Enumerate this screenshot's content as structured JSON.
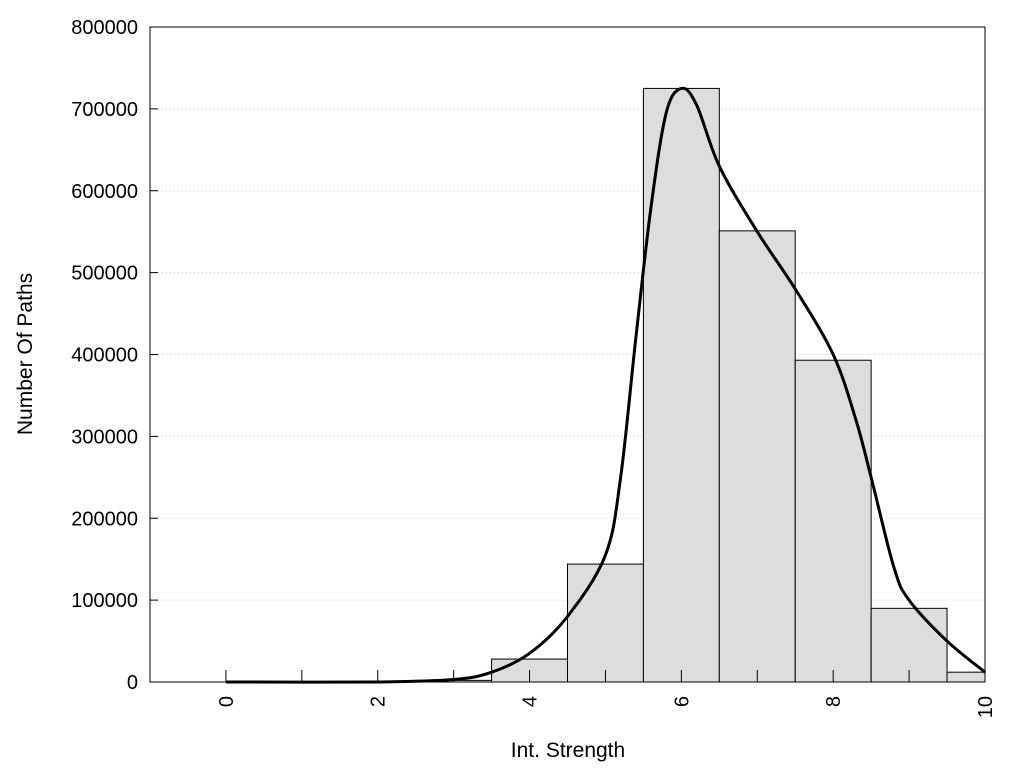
{
  "chart_data": {
    "type": "bar",
    "title": "",
    "xlabel": "Int. Strength",
    "ylabel": "Number Of Paths",
    "xlim": [
      -1,
      10
    ],
    "ylim": [
      0,
      800000
    ],
    "grid": "horizontal dotted",
    "x_ticks": [
      0,
      2,
      4,
      6,
      8,
      10
    ],
    "y_ticks": [
      0,
      100000,
      200000,
      300000,
      400000,
      500000,
      600000,
      700000,
      800000
    ],
    "bar_color": "#dddddd",
    "bars": [
      {
        "x": 0,
        "value": 0
      },
      {
        "x": 1,
        "value": 0
      },
      {
        "x": 2,
        "value": 500
      },
      {
        "x": 3,
        "value": 2000
      },
      {
        "x": 4,
        "value": 28000
      },
      {
        "x": 5,
        "value": 144000
      },
      {
        "x": 6,
        "value": 725000
      },
      {
        "x": 7,
        "value": 551000
      },
      {
        "x": 8,
        "value": 393000
      },
      {
        "x": 9,
        "value": 90000
      },
      {
        "x": 10,
        "value": 12000
      }
    ],
    "density_curve": [
      [
        0,
        0
      ],
      [
        2,
        0
      ],
      [
        3,
        3000
      ],
      [
        3.5,
        12000
      ],
      [
        4,
        35000
      ],
      [
        4.5,
        80000
      ],
      [
        5,
        155000
      ],
      [
        5.2,
        250000
      ],
      [
        5.4,
        420000
      ],
      [
        5.6,
        580000
      ],
      [
        5.8,
        695000
      ],
      [
        6,
        725000
      ],
      [
        6.2,
        705000
      ],
      [
        6.5,
        630000
      ],
      [
        7,
        550000
      ],
      [
        7.5,
        480000
      ],
      [
        8,
        400000
      ],
      [
        8.3,
        320000
      ],
      [
        8.5,
        250000
      ],
      [
        8.8,
        140000
      ],
      [
        9,
        100000
      ],
      [
        9.5,
        50000
      ],
      [
        10,
        12000
      ]
    ]
  }
}
